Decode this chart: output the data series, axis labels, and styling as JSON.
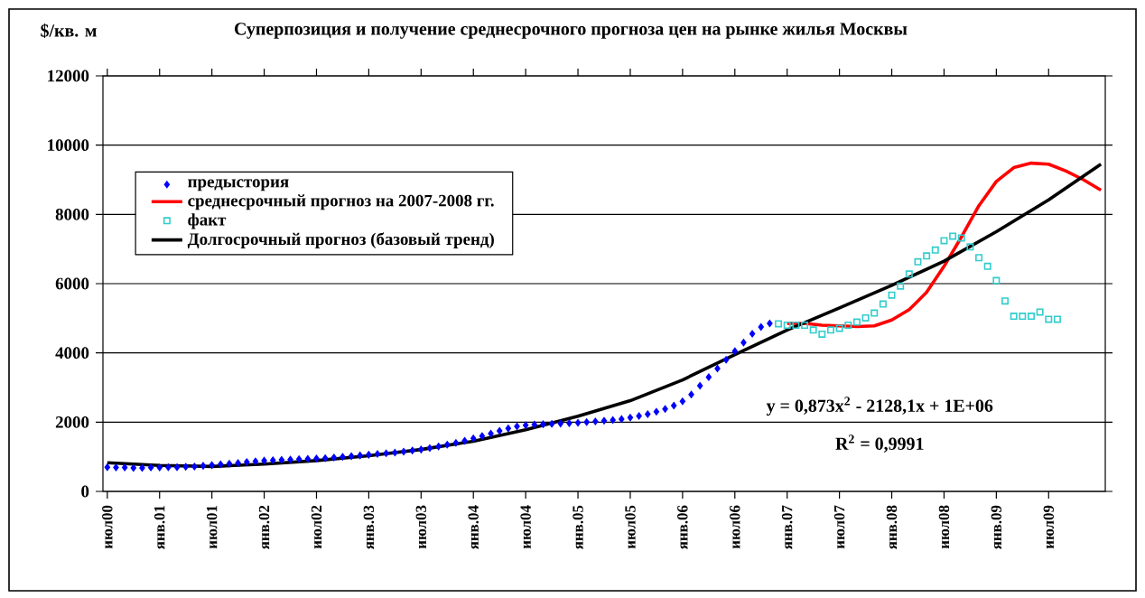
{
  "chart_data": {
    "type": "line",
    "title": "Суперпозиция и получение среднесрочного прогноза цен на рынке жилья Москвы",
    "ylabel": "$/кв. м",
    "xlim": [
      "2000-06-16",
      "2010-01-16"
    ],
    "xticks": [
      {
        "value": "2000-07",
        "label": "июл00"
      },
      {
        "value": "2001-01",
        "label": "янв.01"
      },
      {
        "value": "2001-07",
        "label": "июл01"
      },
      {
        "value": "2002-01",
        "label": "янв.02"
      },
      {
        "value": "2002-07",
        "label": "июл02"
      },
      {
        "value": "2003-01",
        "label": "янв.03"
      },
      {
        "value": "2003-07",
        "label": "июл03"
      },
      {
        "value": "2004-01",
        "label": "янв.04"
      },
      {
        "value": "2004-07",
        "label": "июл04"
      },
      {
        "value": "2005-01",
        "label": "янв.05"
      },
      {
        "value": "2005-07",
        "label": "июл05"
      },
      {
        "value": "2006-01",
        "label": "янв.06"
      },
      {
        "value": "2006-07",
        "label": "июл06"
      },
      {
        "value": "2007-01",
        "label": "янв.07"
      },
      {
        "value": "2007-07",
        "label": "июл07"
      },
      {
        "value": "2008-01",
        "label": "янв.08"
      },
      {
        "value": "2008-07",
        "label": "июл08"
      },
      {
        "value": "2009-01",
        "label": "янв.09"
      },
      {
        "value": "2009-07",
        "label": "июл09"
      }
    ],
    "ylim": [
      0,
      12000
    ],
    "yticks": [
      0,
      2000,
      4000,
      6000,
      8000,
      10000,
      12000
    ],
    "grid": "y",
    "legend": "top left",
    "series": [
      {
        "name": "предыстория",
        "type": "scatter",
        "marker": "diamond",
        "color": "#0000ff",
        "x": [
          "2000-07",
          "2000-08",
          "2000-09",
          "2000-10",
          "2000-11",
          "2000-12",
          "2001-01",
          "2001-02",
          "2001-03",
          "2001-04",
          "2001-05",
          "2001-06",
          "2001-07",
          "2001-08",
          "2001-09",
          "2001-10",
          "2001-11",
          "2001-12",
          "2002-01",
          "2002-02",
          "2002-03",
          "2002-04",
          "2002-05",
          "2002-06",
          "2002-07",
          "2002-08",
          "2002-09",
          "2002-10",
          "2002-11",
          "2002-12",
          "2003-01",
          "2003-02",
          "2003-03",
          "2003-04",
          "2003-05",
          "2003-06",
          "2003-07",
          "2003-08",
          "2003-09",
          "2003-10",
          "2003-11",
          "2003-12",
          "2004-01",
          "2004-02",
          "2004-03",
          "2004-04",
          "2004-05",
          "2004-06",
          "2004-07",
          "2004-08",
          "2004-09",
          "2004-10",
          "2004-11",
          "2004-12",
          "2005-01",
          "2005-02",
          "2005-03",
          "2005-04",
          "2005-05",
          "2005-06",
          "2005-07",
          "2005-08",
          "2005-09",
          "2005-10",
          "2005-11",
          "2005-12",
          "2006-01",
          "2006-02",
          "2006-03",
          "2006-04",
          "2006-05",
          "2006-06",
          "2006-07",
          "2006-08",
          "2006-09",
          "2006-10",
          "2006-11"
        ],
        "values": [
          700,
          690,
          690,
          680,
          680,
          690,
          690,
          700,
          700,
          710,
          720,
          740,
          760,
          780,
          800,
          820,
          850,
          870,
          890,
          900,
          910,
          920,
          930,
          940,
          950,
          960,
          980,
          1000,
          1020,
          1040,
          1060,
          1080,
          1100,
          1120,
          1150,
          1180,
          1210,
          1250,
          1300,
          1350,
          1400,
          1460,
          1530,
          1600,
          1670,
          1750,
          1820,
          1880,
          1910,
          1930,
          1940,
          1950,
          1960,
          1970,
          1980,
          2000,
          2020,
          2040,
          2060,
          2090,
          2130,
          2180,
          2230,
          2300,
          2380,
          2480,
          2600,
          2800,
          3050,
          3300,
          3550,
          3800,
          4050,
          4300,
          4550,
          4750,
          4850
        ]
      },
      {
        "name": "среднесрочный прогноз на 2007-2008 гг.",
        "type": "line",
        "color": "#ff0000",
        "x": [
          "2007-01",
          "2007-03",
          "2007-05",
          "2007-07",
          "2007-09",
          "2007-11",
          "2008-01",
          "2008-03",
          "2008-05",
          "2008-07",
          "2008-09",
          "2008-11",
          "2009-01",
          "2009-03",
          "2009-05",
          "2009-07",
          "2009-09",
          "2009-11",
          "2010-01"
        ],
        "values": [
          4850,
          4850,
          4800,
          4780,
          4760,
          4780,
          4950,
          5250,
          5750,
          6500,
          7350,
          8250,
          8950,
          9350,
          9480,
          9450,
          9250,
          9000,
          8700
        ]
      },
      {
        "name": "факт",
        "type": "scatter",
        "marker": "square",
        "color": "#33cccc",
        "x": [
          "2006-12",
          "2007-01",
          "2007-02",
          "2007-03",
          "2007-04",
          "2007-05",
          "2007-06",
          "2007-07",
          "2007-08",
          "2007-09",
          "2007-10",
          "2007-11",
          "2007-12",
          "2008-01",
          "2008-02",
          "2008-03",
          "2008-04",
          "2008-05",
          "2008-06",
          "2008-07",
          "2008-08",
          "2008-09",
          "2008-10",
          "2008-11",
          "2008-12",
          "2009-01",
          "2009-02",
          "2009-03",
          "2009-04",
          "2009-05",
          "2009-06",
          "2009-07",
          "2009-08"
        ],
        "values": [
          4840,
          4800,
          4800,
          4800,
          4660,
          4540,
          4660,
          4710,
          4800,
          4890,
          5010,
          5150,
          5410,
          5670,
          5930,
          6280,
          6630,
          6800,
          6970,
          7240,
          7370,
          7320,
          7060,
          6750,
          6500,
          6090,
          5500,
          5060,
          5060,
          5060,
          5180,
          4970,
          4970
        ]
      },
      {
        "name": "Долгосрочный прогноз (базовый тренд)",
        "type": "line",
        "color": "#000000",
        "x": [
          "2000-07",
          "2001-01",
          "2001-07",
          "2002-01",
          "2002-07",
          "2003-01",
          "2003-07",
          "2004-01",
          "2004-07",
          "2005-01",
          "2005-07",
          "2006-01",
          "2006-07",
          "2007-01",
          "2007-07",
          "2008-01",
          "2008-07",
          "2009-01",
          "2009-07",
          "2010-01"
        ],
        "values": [
          830,
          750,
          720,
          790,
          890,
          1030,
          1210,
          1450,
          1780,
          2170,
          2620,
          3220,
          3950,
          4660,
          5300,
          5950,
          6650,
          7500,
          8420,
          9450
        ]
      }
    ],
    "annotations": [
      "y = 0,873x$^{2}$ - 2128,1x + 1E+06",
      "R$^{2}$ = 0,9991"
    ]
  }
}
